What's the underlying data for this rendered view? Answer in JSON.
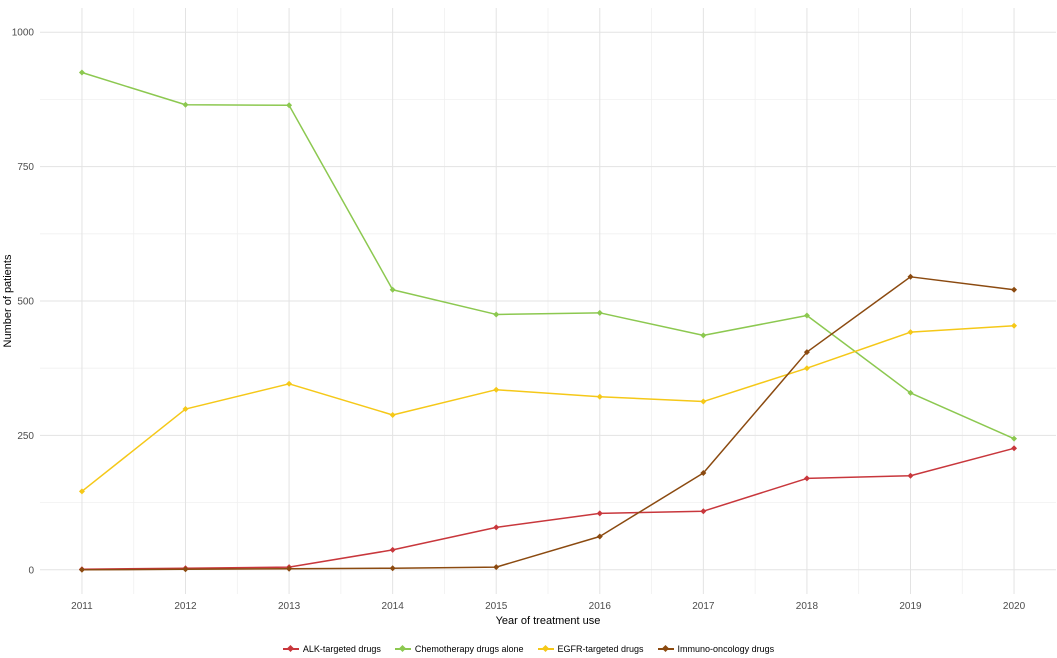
{
  "chart_data": {
    "type": "line",
    "xlabel": "Year of treatment use",
    "ylabel": "Number of patients",
    "x": [
      2011,
      2012,
      2013,
      2014,
      2015,
      2016,
      2017,
      2018,
      2019,
      2020
    ],
    "x_tick_labels": [
      "2011",
      "2012",
      "2013",
      "2014",
      "2015",
      "2016",
      "2017",
      "2018",
      "2019",
      "2020"
    ],
    "y_ticks": [
      0,
      250,
      500,
      750,
      1000
    ],
    "y_tick_labels": [
      "0",
      "250",
      "500",
      "750",
      "1000"
    ],
    "ylim": [
      0,
      1000
    ],
    "grid": true,
    "legend_position": "bottom",
    "series": [
      {
        "name": "ALK-targeted drugs",
        "color": "#c8373c",
        "values": [
          1,
          3,
          5,
          37,
          79,
          105,
          109,
          170,
          175,
          226
        ]
      },
      {
        "name": "Chemotherapy drugs alone",
        "color": "#8cc850",
        "values": [
          925,
          865,
          864,
          521,
          475,
          478,
          436,
          473,
          329,
          244
        ]
      },
      {
        "name": "EGFR-targeted drugs",
        "color": "#f5c818",
        "values": [
          146,
          299,
          346,
          288,
          335,
          322,
          313,
          375,
          442,
          454
        ]
      },
      {
        "name": "Immuno-oncology drugs",
        "color": "#8b4a10",
        "values": [
          0,
          1,
          2,
          3,
          5,
          62,
          180,
          405,
          545,
          521
        ]
      }
    ]
  }
}
